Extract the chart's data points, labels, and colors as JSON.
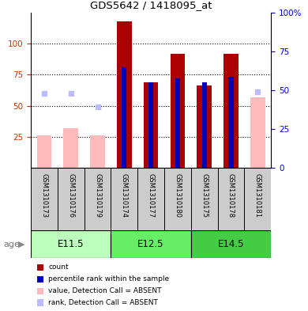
{
  "title": "GDS5642 / 1418095_at",
  "samples": [
    "GSM1310173",
    "GSM1310176",
    "GSM1310179",
    "GSM1310174",
    "GSM1310177",
    "GSM1310180",
    "GSM1310175",
    "GSM1310178",
    "GSM1310181"
  ],
  "age_groups": [
    {
      "label": "E11.5",
      "start": 0,
      "end": 3
    },
    {
      "label": "E12.5",
      "start": 3,
      "end": 6
    },
    {
      "label": "E14.5",
      "start": 6,
      "end": 9
    }
  ],
  "age_colors": [
    "#bbffbb",
    "#66ee66",
    "#44cc44"
  ],
  "count_values": [
    null,
    null,
    null,
    118,
    69,
    92,
    66,
    92,
    null
  ],
  "percentile_values": [
    null,
    null,
    null,
    81,
    69,
    72,
    69,
    73,
    null
  ],
  "absent_value": [
    26,
    32,
    26,
    null,
    null,
    null,
    null,
    null,
    57
  ],
  "absent_rank": [
    60,
    60,
    49,
    null,
    null,
    null,
    null,
    null,
    61
  ],
  "ylim_left": [
    0,
    125
  ],
  "ylim_right": [
    0,
    100
  ],
  "yticks_left": [
    25,
    50,
    75,
    100
  ],
  "yticks_right": [
    0,
    25,
    50,
    75,
    100
  ],
  "ytick_labels_right": [
    "0",
    "25",
    "50",
    "75",
    "100%"
  ],
  "count_color": "#aa0000",
  "percentile_color": "#0000bb",
  "absent_value_color": "#ffbbbb",
  "absent_rank_color": "#bbbbff",
  "count_bar_width": 0.55,
  "percentile_bar_width": 0.18,
  "grid_color": "black",
  "plot_bg_color": "#ffffff",
  "sample_bg_color": "#cccccc",
  "left_tick_color": "#cc3300",
  "right_tick_color": "#0000cc"
}
